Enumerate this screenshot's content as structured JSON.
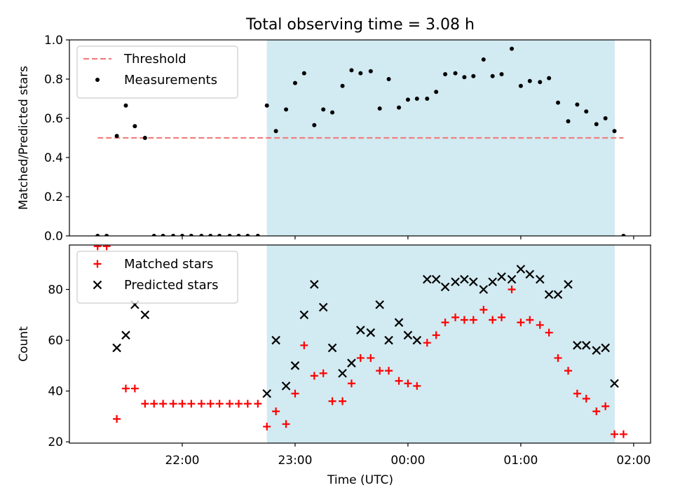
{
  "chart_data": {
    "type": "scatter",
    "title": "Total observing time = 3.08 h",
    "xlabel": "Time (UTC)",
    "x_unit": "hours UTC, values after midnight continue past 24",
    "xlim": [
      21.0,
      26.15
    ],
    "xticks": [
      22,
      23,
      24,
      25,
      26
    ],
    "xtick_labels": [
      "22:00",
      "23:00",
      "00:00",
      "01:00",
      "02:00"
    ],
    "shaded_interval": {
      "x": [
        22.75,
        25.833
      ],
      "color": "#add8e6"
    },
    "panels": [
      {
        "id": "ratio",
        "ylabel": "Matched/Predicted stars",
        "ylim": [
          0.0,
          1.0
        ],
        "yticks": [
          0.0,
          0.2,
          0.4,
          0.6,
          0.8,
          1.0
        ],
        "ytick_labels": [
          "0.0",
          "0.2",
          "0.4",
          "0.6",
          "0.8",
          "1.0"
        ],
        "legend": {
          "position": "upper-left"
        },
        "threshold": {
          "name": "Threshold",
          "y": 0.5,
          "x": [
            21.25,
            25.91
          ],
          "color": "#f08080",
          "style": "dashed"
        },
        "series": [
          {
            "name": "Measurements",
            "marker": "dot",
            "color": "#000000",
            "points": [
              [
                21.25,
                0.0
              ],
              [
                21.33,
                0.0
              ],
              [
                21.42,
                0.51
              ],
              [
                21.5,
                0.665
              ],
              [
                21.58,
                0.56
              ],
              [
                21.67,
                0.5
              ],
              [
                21.75,
                0.0
              ],
              [
                21.83,
                0.0
              ],
              [
                21.92,
                0.0
              ],
              [
                22.0,
                0.0
              ],
              [
                22.08,
                0.0
              ],
              [
                22.17,
                0.0
              ],
              [
                22.25,
                0.0
              ],
              [
                22.33,
                0.0
              ],
              [
                22.42,
                0.0
              ],
              [
                22.5,
                0.0
              ],
              [
                22.58,
                0.0
              ],
              [
                22.67,
                0.0
              ],
              [
                22.75,
                0.665
              ],
              [
                22.83,
                0.535
              ],
              [
                22.92,
                0.645
              ],
              [
                23.0,
                0.78
              ],
              [
                23.08,
                0.83
              ],
              [
                23.17,
                0.565
              ],
              [
                23.25,
                0.645
              ],
              [
                23.33,
                0.63
              ],
              [
                23.42,
                0.765
              ],
              [
                23.5,
                0.845
              ],
              [
                23.58,
                0.83
              ],
              [
                23.67,
                0.84
              ],
              [
                23.75,
                0.65
              ],
              [
                23.83,
                0.8
              ],
              [
                23.92,
                0.655
              ],
              [
                24.0,
                0.695
              ],
              [
                24.08,
                0.7
              ],
              [
                24.17,
                0.7
              ],
              [
                24.25,
                0.735
              ],
              [
                24.33,
                0.825
              ],
              [
                24.42,
                0.83
              ],
              [
                24.5,
                0.81
              ],
              [
                24.58,
                0.815
              ],
              [
                24.67,
                0.9
              ],
              [
                24.75,
                0.815
              ],
              [
                24.83,
                0.825
              ],
              [
                24.92,
                0.955
              ],
              [
                25.0,
                0.765
              ],
              [
                25.08,
                0.79
              ],
              [
                25.17,
                0.785
              ],
              [
                25.25,
                0.805
              ],
              [
                25.33,
                0.68
              ],
              [
                25.42,
                0.585
              ],
              [
                25.5,
                0.67
              ],
              [
                25.58,
                0.635
              ],
              [
                25.67,
                0.57
              ],
              [
                25.75,
                0.6
              ],
              [
                25.83,
                0.535
              ],
              [
                25.91,
                0.0
              ]
            ]
          }
        ]
      },
      {
        "id": "count",
        "ylabel": "Count",
        "ylim": [
          19.5,
          97.5
        ],
        "yticks": [
          20,
          40,
          60,
          80
        ],
        "ytick_labels": [
          "20",
          "40",
          "60",
          "80"
        ],
        "legend": {
          "position": "upper-left"
        },
        "series": [
          {
            "name": "Matched stars",
            "marker": "plus",
            "color": "#ff0000",
            "points": [
              [
                21.25,
                97
              ],
              [
                21.33,
                97
              ],
              [
                21.42,
                29
              ],
              [
                21.5,
                41
              ],
              [
                21.58,
                41
              ],
              [
                21.67,
                35
              ],
              [
                21.75,
                35
              ],
              [
                21.83,
                35
              ],
              [
                21.92,
                35
              ],
              [
                22.0,
                35
              ],
              [
                22.08,
                35
              ],
              [
                22.17,
                35
              ],
              [
                22.25,
                35
              ],
              [
                22.33,
                35
              ],
              [
                22.42,
                35
              ],
              [
                22.5,
                35
              ],
              [
                22.58,
                35
              ],
              [
                22.67,
                35
              ],
              [
                22.75,
                26
              ],
              [
                22.83,
                32
              ],
              [
                22.92,
                27
              ],
              [
                23.0,
                39
              ],
              [
                23.08,
                58
              ],
              [
                23.17,
                46
              ],
              [
                23.25,
                47
              ],
              [
                23.33,
                36
              ],
              [
                23.42,
                36
              ],
              [
                23.5,
                43
              ],
              [
                23.58,
                53
              ],
              [
                23.67,
                53
              ],
              [
                23.75,
                48
              ],
              [
                23.83,
                48
              ],
              [
                23.92,
                44
              ],
              [
                24.0,
                43
              ],
              [
                24.08,
                42
              ],
              [
                24.17,
                59
              ],
              [
                24.25,
                62
              ],
              [
                24.33,
                67
              ],
              [
                24.42,
                69
              ],
              [
                24.5,
                68
              ],
              [
                24.58,
                68
              ],
              [
                24.67,
                72
              ],
              [
                24.75,
                68
              ],
              [
                24.83,
                69
              ],
              [
                24.92,
                80
              ],
              [
                25.0,
                67
              ],
              [
                25.08,
                68
              ],
              [
                25.17,
                66
              ],
              [
                25.25,
                63
              ],
              [
                25.33,
                53
              ],
              [
                25.42,
                48
              ],
              [
                25.5,
                39
              ],
              [
                25.58,
                37
              ],
              [
                25.67,
                32
              ],
              [
                25.75,
                34
              ],
              [
                25.83,
                23
              ],
              [
                25.91,
                23
              ]
            ]
          },
          {
            "name": "Predicted stars",
            "marker": "x",
            "color": "#000000",
            "points": [
              [
                21.42,
                57
              ],
              [
                21.5,
                62
              ],
              [
                21.58,
                74
              ],
              [
                21.67,
                70
              ],
              [
                22.75,
                39
              ],
              [
                22.83,
                60
              ],
              [
                22.92,
                42
              ],
              [
                23.0,
                50
              ],
              [
                23.08,
                70
              ],
              [
                23.17,
                82
              ],
              [
                23.25,
                73
              ],
              [
                23.33,
                57
              ],
              [
                23.42,
                47
              ],
              [
                23.5,
                51
              ],
              [
                23.58,
                64
              ],
              [
                23.67,
                63
              ],
              [
                23.75,
                74
              ],
              [
                23.83,
                60
              ],
              [
                23.92,
                67
              ],
              [
                24.0,
                62
              ],
              [
                24.08,
                60
              ],
              [
                24.17,
                84
              ],
              [
                24.25,
                84
              ],
              [
                24.33,
                81
              ],
              [
                24.42,
                83
              ],
              [
                24.5,
                84
              ],
              [
                24.58,
                83
              ],
              [
                24.67,
                80
              ],
              [
                24.75,
                83
              ],
              [
                24.83,
                85
              ],
              [
                24.92,
                84
              ],
              [
                25.0,
                88
              ],
              [
                25.08,
                86
              ],
              [
                25.17,
                84
              ],
              [
                25.25,
                78
              ],
              [
                25.33,
                78
              ],
              [
                25.42,
                82
              ],
              [
                25.5,
                58
              ],
              [
                25.58,
                58
              ],
              [
                25.67,
                56
              ],
              [
                25.75,
                57
              ],
              [
                25.83,
                43
              ]
            ]
          }
        ]
      }
    ]
  }
}
